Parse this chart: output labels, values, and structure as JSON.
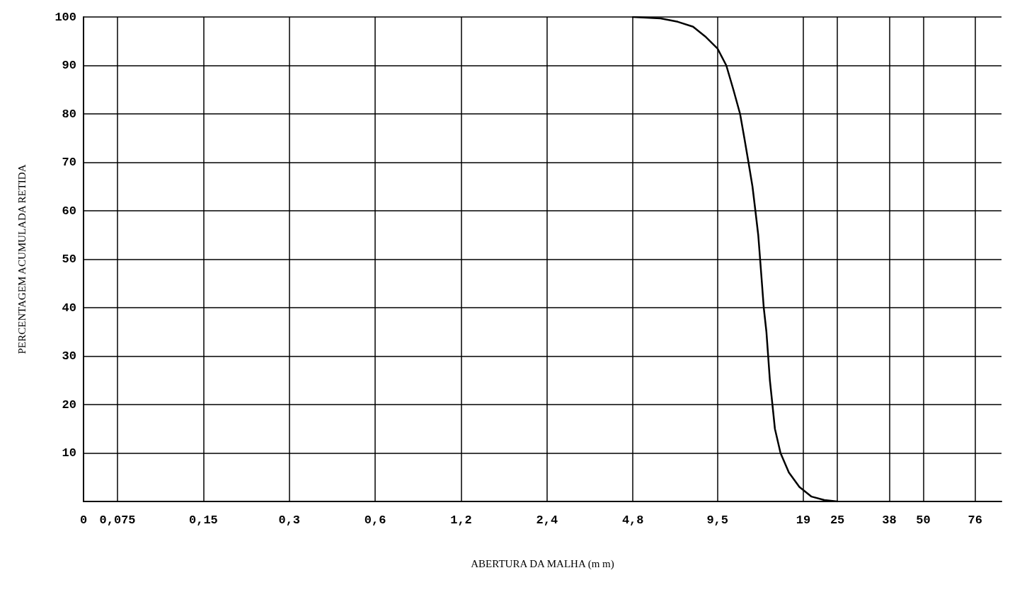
{
  "chart_data": {
    "type": "line",
    "xlabel": "ABERTURA DA MALHA (m m)",
    "ylabel": "PERCENTAGEM ACUMULADA RETIDA",
    "log": "x",
    "xlim": [
      0.057,
      94
    ],
    "xticks": [
      {
        "value": 0.057,
        "label": "0"
      },
      {
        "value": 0.075,
        "label": "0,075"
      },
      {
        "value": 0.15,
        "label": "0,15"
      },
      {
        "value": 0.3,
        "label": "0,3"
      },
      {
        "value": 0.6,
        "label": "0,6"
      },
      {
        "value": 1.2,
        "label": "1,2"
      },
      {
        "value": 2.4,
        "label": "2,4"
      },
      {
        "value": 4.8,
        "label": "4,8"
      },
      {
        "value": 9.5,
        "label": "9,5"
      },
      {
        "value": 19,
        "label": "19"
      },
      {
        "value": 25,
        "label": "25"
      },
      {
        "value": 38,
        "label": "38"
      },
      {
        "value": 50,
        "label": "50"
      },
      {
        "value": 76,
        "label": "76"
      }
    ],
    "ylim": [
      0,
      100
    ],
    "yticks": [
      10,
      20,
      30,
      40,
      50,
      60,
      70,
      80,
      90,
      100
    ],
    "grid": true,
    "marker": "none",
    "line_style": "solid",
    "series": [
      {
        "color": "#000000",
        "x": [
          4.8,
          6.0,
          6.9,
          7.8,
          8.6,
          9.5,
          10.2,
          10.8,
          11.4,
          11.8,
          12.2,
          12.6,
          12.9,
          13.2,
          13.4,
          13.6,
          13.8,
          14.1,
          14.3,
          14.5,
          14.8,
          15.1,
          15.8,
          16.9,
          18.4,
          20.3,
          22.5,
          25
        ],
        "values": [
          100,
          99.7,
          99,
          98,
          96,
          93.5,
          90,
          85,
          80,
          75,
          70,
          65,
          60,
          55,
          50,
          45,
          40,
          35,
          30,
          25,
          20,
          15,
          10,
          6,
          3,
          1,
          0.3,
          0
        ]
      }
    ]
  }
}
